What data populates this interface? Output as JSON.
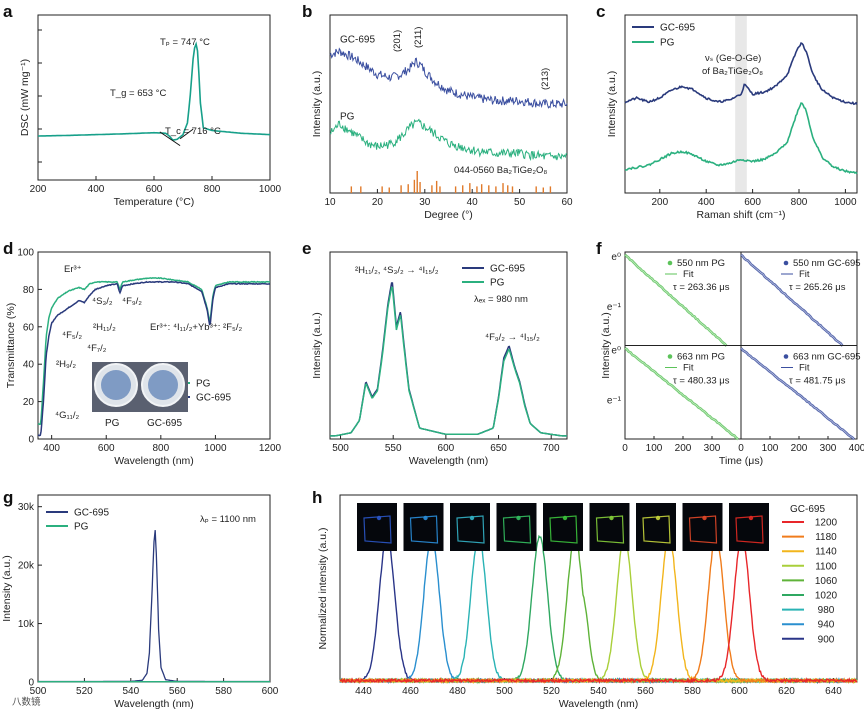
{
  "colors": {
    "gc": "#2a3a7c",
    "pg": "#2bb07f",
    "dsc": "#17a08a",
    "pg_light": "#5cc35a",
    "gc_light": "#3b4fa0",
    "refbar": "#e07a2a",
    "band": "#d9d9d9"
  },
  "chart_data": [
    {
      "id": "a",
      "type": "line",
      "panel_label": "a",
      "xlabel": "Temperature (°C)",
      "ylabel": "DSC (mW mg⁻¹)",
      "xlim": [
        200,
        1000
      ],
      "xticks": [
        200,
        400,
        600,
        800,
        1000
      ],
      "yticks_shown": false,
      "annotations": [
        "Tₚ = 747 °C",
        "T_g = 653 °C",
        "T_c = 716 °C"
      ],
      "series": [
        {
          "x": [
            200,
            300,
            400,
            500,
            550,
            600,
            640,
            653,
            665,
            680,
            700,
            716,
            725,
            735,
            740,
            747,
            752,
            760,
            770,
            800,
            900,
            1000
          ],
          "y": [
            0.0,
            0.02,
            0.05,
            0.08,
            0.1,
            0.12,
            0.1,
            0.0,
            -0.15,
            -0.12,
            0.05,
            0.5,
            1.5,
            2.8,
            3.2,
            3.4,
            2.9,
            1.2,
            0.3,
            0.2,
            0.1,
            0.05
          ]
        }
      ]
    },
    {
      "id": "b",
      "type": "line",
      "panel_label": "b",
      "xlabel": "Degree (°)",
      "ylabel": "Intensity (a.u.)",
      "xlim": [
        10,
        60
      ],
      "xticks": [
        10,
        20,
        30,
        40,
        50,
        60
      ],
      "annotations": [
        "(201)",
        "(211)",
        "(213)",
        "044-0560 Ba₂TiGe₂O₈"
      ],
      "series": [
        {
          "name": "GC-695",
          "x": [
            10,
            12,
            15,
            18,
            20,
            23,
            25,
            27,
            28,
            29,
            30,
            32,
            35,
            40,
            45,
            50,
            55,
            60
          ],
          "y": [
            4.0,
            4.1,
            3.9,
            3.6,
            3.4,
            3.3,
            3.4,
            3.6,
            3.8,
            3.7,
            3.5,
            3.2,
            2.9,
            2.7,
            2.6,
            2.6,
            2.5,
            2.5
          ]
        },
        {
          "name": "PG",
          "x": [
            10,
            12,
            15,
            18,
            20,
            23,
            25,
            27,
            28,
            29,
            30,
            32,
            35,
            40,
            45,
            50,
            55,
            60
          ],
          "y": [
            1.6,
            1.9,
            1.6,
            1.3,
            1.2,
            1.3,
            1.5,
            1.8,
            1.9,
            1.9,
            1.8,
            1.6,
            1.3,
            1.1,
            1.0,
            1.0,
            0.9,
            0.9
          ]
        }
      ],
      "reference_bars": {
        "name": "044-0560 Ba₂TiGe₂O₈",
        "x": [
          14.5,
          16.5,
          21,
          22.5,
          25,
          26.5,
          27.8,
          28.4,
          29,
          31.5,
          32.5,
          33.2,
          36.5,
          38,
          39.5,
          41,
          42,
          43.5,
          45,
          46.5,
          47.5,
          48.5,
          53.5,
          55,
          56.5
        ],
        "h": [
          0.3,
          0.3,
          0.3,
          0.25,
          0.35,
          0.4,
          0.6,
          1.0,
          0.5,
          0.35,
          0.55,
          0.3,
          0.3,
          0.35,
          0.45,
          0.3,
          0.4,
          0.35,
          0.3,
          0.45,
          0.35,
          0.3,
          0.3,
          0.25,
          0.3
        ]
      }
    },
    {
      "id": "c",
      "type": "line",
      "panel_label": "c",
      "xlabel": "Raman shift (cm⁻¹)",
      "ylabel": "Intensity (a.u.)",
      "xlim": [
        50,
        1050
      ],
      "xticks": [
        200,
        400,
        600,
        800,
        1000
      ],
      "annotations": [
        "νₛ (Ge-O-Ge)",
        "of Ba₂TiGe₂O₈"
      ],
      "band": [
        525,
        575
      ],
      "series": [
        {
          "name": "GC-695",
          "x": [
            50,
            100,
            150,
            200,
            250,
            300,
            350,
            400,
            450,
            500,
            550,
            565,
            600,
            650,
            700,
            750,
            790,
            810,
            830,
            860,
            900,
            950,
            1000,
            1050
          ],
          "y": [
            2.3,
            2.4,
            2.3,
            2.4,
            2.6,
            2.7,
            2.6,
            2.4,
            2.3,
            2.35,
            2.5,
            2.75,
            2.5,
            2.55,
            2.7,
            3.0,
            3.6,
            3.8,
            3.6,
            3.0,
            2.6,
            2.4,
            2.3,
            2.25
          ]
        },
        {
          "name": "PG",
          "x": [
            50,
            100,
            150,
            200,
            250,
            300,
            350,
            400,
            450,
            500,
            550,
            600,
            650,
            700,
            750,
            790,
            810,
            830,
            860,
            900,
            950,
            1000,
            1050
          ],
          "y": [
            0.6,
            0.65,
            0.7,
            0.85,
            1.0,
            1.05,
            0.95,
            0.8,
            0.7,
            0.75,
            0.85,
            0.8,
            0.85,
            1.0,
            1.3,
            2.0,
            2.3,
            2.1,
            1.4,
            0.9,
            0.65,
            0.55,
            0.5
          ]
        }
      ]
    },
    {
      "id": "d",
      "type": "line",
      "panel_label": "d",
      "xlabel": "Wavelength (nm)",
      "ylabel": "Transmittance (%)",
      "xlim": [
        350,
        1200
      ],
      "xticks": [
        400,
        600,
        800,
        1000,
        1200
      ],
      "ylim": [
        0,
        100
      ],
      "yticks": [
        0,
        20,
        40,
        60,
        80,
        100
      ],
      "annotations": [
        "Er³⁺",
        "⁴S₃/₂",
        "⁴F₉/₂",
        "⁴F₅/₂",
        "²H₁₁/₂",
        "²H₉/₂",
        "⁴F₇/₂",
        "⁴G₁₁/₂",
        "Er³⁺: ⁴I₁₁/₂+Yb³⁺: ²F₅/₂",
        "PG",
        "GC-695"
      ],
      "series": [
        {
          "name": "PG",
          "x": [
            360,
            370,
            380,
            390,
            400,
            420,
            440,
            460,
            480,
            500,
            520,
            540,
            560,
            600,
            640,
            650,
            660,
            700,
            750,
            800,
            850,
            900,
            950,
            970,
            980,
            990,
            1000,
            1050,
            1100,
            1150,
            1200
          ],
          "y": [
            8,
            30,
            55,
            65,
            70,
            75,
            77,
            79,
            80,
            81,
            80,
            83,
            84,
            84,
            84,
            80,
            84,
            85,
            86,
            86,
            85,
            84,
            80,
            70,
            62,
            76,
            82,
            84,
            84,
            84,
            84
          ]
        },
        {
          "name": "GC-695",
          "x": [
            360,
            370,
            380,
            390,
            400,
            420,
            440,
            460,
            480,
            500,
            520,
            540,
            560,
            600,
            640,
            650,
            660,
            700,
            750,
            800,
            850,
            900,
            950,
            970,
            980,
            990,
            1000,
            1050,
            1100,
            1150,
            1200
          ],
          "y": [
            2,
            20,
            45,
            55,
            62,
            66,
            68,
            70,
            72,
            74,
            73,
            77,
            80,
            82,
            83,
            78,
            82,
            83,
            84,
            84,
            84,
            83,
            79,
            69,
            60,
            74,
            81,
            83,
            83,
            83,
            83
          ]
        }
      ]
    },
    {
      "id": "e",
      "type": "line",
      "panel_label": "e",
      "xlabel": "Wavelength (nm)",
      "ylabel": "Intensity (a.u.)",
      "xlim": [
        490,
        715
      ],
      "xticks": [
        500,
        550,
        600,
        650,
        700
      ],
      "annotations": [
        "²H₁₁/₂, ⁴S₃/₂ → ⁴I₁₅/₂",
        "λₑₓ = 980 nm",
        "⁴F₉/₂ → ⁴I₁₅/₂"
      ],
      "series": [
        {
          "name": "GC-695",
          "x": [
            495,
            510,
            518,
            524,
            530,
            535,
            540,
            545,
            549,
            553,
            557,
            560,
            565,
            575,
            600,
            630,
            645,
            650,
            655,
            660,
            665,
            670,
            675,
            680,
            690,
            710
          ],
          "y": [
            0.0,
            0.02,
            0.1,
            0.35,
            0.25,
            0.3,
            0.55,
            0.85,
            1.0,
            0.7,
            0.8,
            0.6,
            0.3,
            0.05,
            0.01,
            0.01,
            0.05,
            0.25,
            0.5,
            0.58,
            0.45,
            0.35,
            0.2,
            0.08,
            0.02,
            0.0
          ]
        },
        {
          "name": "PG",
          "x": [
            495,
            510,
            518,
            524,
            530,
            535,
            540,
            545,
            549,
            553,
            557,
            560,
            565,
            575,
            600,
            630,
            645,
            650,
            655,
            660,
            665,
            670,
            675,
            680,
            690,
            710
          ],
          "y": [
            0.0,
            0.02,
            0.1,
            0.34,
            0.24,
            0.29,
            0.53,
            0.83,
            0.97,
            0.68,
            0.78,
            0.58,
            0.29,
            0.05,
            0.01,
            0.01,
            0.05,
            0.24,
            0.48,
            0.56,
            0.44,
            0.34,
            0.19,
            0.08,
            0.02,
            0.0
          ]
        }
      ]
    },
    {
      "id": "f",
      "type": "line",
      "panel_label": "f",
      "log_y": true,
      "xlabel": "Time (μs)",
      "ylabel": "Intensity (a.u.)",
      "xlim": [
        0,
        400
      ],
      "xticks": [
        0,
        100,
        200,
        300,
        400
      ],
      "y_tick_labels": [
        "e⁰",
        "e⁻¹"
      ],
      "subpanels": [
        {
          "label": "550 nm PG",
          "fit": "Fit",
          "tau": "τ = 263.36 μs",
          "tau_value": 263.36
        },
        {
          "label": "550 nm GC-695",
          "fit": "Fit",
          "tau": "τ = 265.26 μs",
          "tau_value": 265.26
        },
        {
          "label": "663 nm PG",
          "fit": "Fit",
          "tau": "τ = 480.33 μs",
          "tau_value": 480.33
        },
        {
          "label": "663 nm GC-695",
          "fit": "Fit",
          "tau": "τ = 481.75 μs",
          "tau_value": 481.75
        }
      ]
    },
    {
      "id": "g",
      "type": "line",
      "panel_label": "g",
      "xlabel": "Wavelength (nm)",
      "ylabel": "Intensity (a.u.)",
      "xlim": [
        500,
        600
      ],
      "xticks": [
        500,
        520,
        540,
        560,
        580,
        600
      ],
      "ylim": [
        0,
        32000
      ],
      "yticks": [
        0,
        10000,
        20000,
        30000
      ],
      "ytick_labels": [
        "0",
        "10k",
        "20k",
        "30k"
      ],
      "annotations": [
        "λₚ = 1100 nm"
      ],
      "series": [
        {
          "name": "GC-695",
          "x": [
            500,
            540,
            545,
            547,
            548,
            549,
            550,
            550.5,
            551,
            552,
            553,
            555,
            560,
            600
          ],
          "y": [
            80,
            100,
            300,
            1500,
            5000,
            14000,
            24000,
            26000,
            22000,
            9000,
            2500,
            400,
            100,
            80
          ]
        },
        {
          "name": "PG",
          "x": [
            500,
            600
          ],
          "y": [
            50,
            50
          ]
        }
      ]
    },
    {
      "id": "h",
      "type": "line",
      "panel_label": "h",
      "xlabel": "Wavelength (nm)",
      "ylabel": "Normalized intensity (a.u.)",
      "xlim": [
        430,
        650
      ],
      "xticks": [
        440,
        460,
        480,
        500,
        520,
        540,
        560,
        580,
        600,
        620,
        640
      ],
      "legend_title": "GC-695",
      "series": [
        {
          "name": "1200",
          "peak": 601,
          "color": "#e8262a"
        },
        {
          "name": "1180",
          "peak": 590,
          "color": "#f07c1c"
        },
        {
          "name": "1140",
          "peak": 570,
          "color": "#f2b51c"
        },
        {
          "name": "1100",
          "peak": 551,
          "color": "#a9cf3a"
        },
        {
          "name": "1060",
          "peak": 530,
          "color": "#5fb339"
        },
        {
          "name": "1020",
          "peak": 515,
          "color": "#2fa861"
        },
        {
          "name": "980",
          "peak": 489,
          "color": "#2ab3b5"
        },
        {
          "name": "940",
          "peak": 469,
          "color": "#2a8fcf"
        },
        {
          "name": "900",
          "peak": 450,
          "color": "#2a3588"
        }
      ],
      "inset_colors": [
        "#2b57c8",
        "#2a8fdc",
        "#34b4c8",
        "#34c060",
        "#3cc43c",
        "#86d03a",
        "#c8d63c",
        "#e34828",
        "#e42a22"
      ]
    }
  ],
  "watermark": "八数镜"
}
